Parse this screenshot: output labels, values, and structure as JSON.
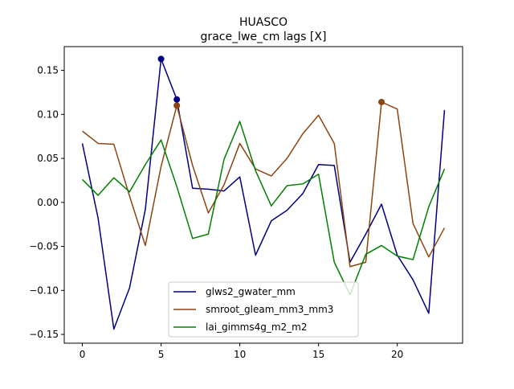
{
  "chart_data": {
    "type": "line",
    "title": "HUASCO",
    "subtitle": "grace_lwe_cm lags [X]",
    "xlabel": "",
    "ylabel": "",
    "xlim": [
      -1.15,
      24.15
    ],
    "ylim": [
      -0.16,
      0.177
    ],
    "xticks": [
      0,
      5,
      10,
      15,
      20
    ],
    "xtick_labels": [
      "0",
      "5",
      "10",
      "15",
      "20"
    ],
    "yticks": [
      -0.15,
      -0.1,
      -0.05,
      0.0,
      0.05,
      0.1,
      0.15
    ],
    "ytick_labels": [
      "−0.15",
      "−0.10",
      "−0.05",
      "0.00",
      "0.05",
      "0.10",
      "0.15"
    ],
    "grid": false,
    "legend_position": "lower-center",
    "x": [
      0,
      1,
      2,
      3,
      4,
      5,
      6,
      7,
      8,
      9,
      10,
      11,
      12,
      13,
      14,
      15,
      16,
      17,
      18,
      19,
      20,
      21,
      22,
      23
    ],
    "series": [
      {
        "name": "glws2_gwater_mm",
        "color": "#000080",
        "values": [
          0.067,
          -0.018,
          -0.144,
          -0.097,
          -0.008,
          0.163,
          0.117,
          0.016,
          0.015,
          0.013,
          0.029,
          -0.06,
          -0.021,
          -0.009,
          0.01,
          0.043,
          0.042,
          -0.068,
          -0.036,
          -0.002,
          -0.06,
          -0.088,
          -0.126,
          0.105
        ],
        "markers": [
          {
            "x": 5,
            "y": 0.163
          },
          {
            "x": 6,
            "y": 0.117
          }
        ]
      },
      {
        "name": "smroot_gleam_mm3_mm3",
        "color": "#8B4513",
        "values": [
          0.081,
          0.067,
          0.066,
          0.007,
          -0.049,
          0.041,
          0.11,
          0.042,
          -0.012,
          0.02,
          0.067,
          0.038,
          0.03,
          0.05,
          0.078,
          0.099,
          0.067,
          -0.073,
          -0.068,
          0.114,
          0.106,
          -0.024,
          -0.062,
          -0.029
        ],
        "markers": [
          {
            "x": 6,
            "y": 0.11
          },
          {
            "x": 19,
            "y": 0.114
          }
        ]
      },
      {
        "name": "lai_gimms4g_m2_m2",
        "color": "#008000",
        "values": [
          0.026,
          0.008,
          0.028,
          0.012,
          0.043,
          0.071,
          0.018,
          -0.041,
          -0.036,
          0.049,
          0.092,
          0.036,
          -0.004,
          0.019,
          0.021,
          0.032,
          -0.068,
          -0.105,
          -0.059,
          -0.049,
          -0.061,
          -0.065,
          -0.005,
          0.038
        ],
        "markers": []
      }
    ]
  }
}
